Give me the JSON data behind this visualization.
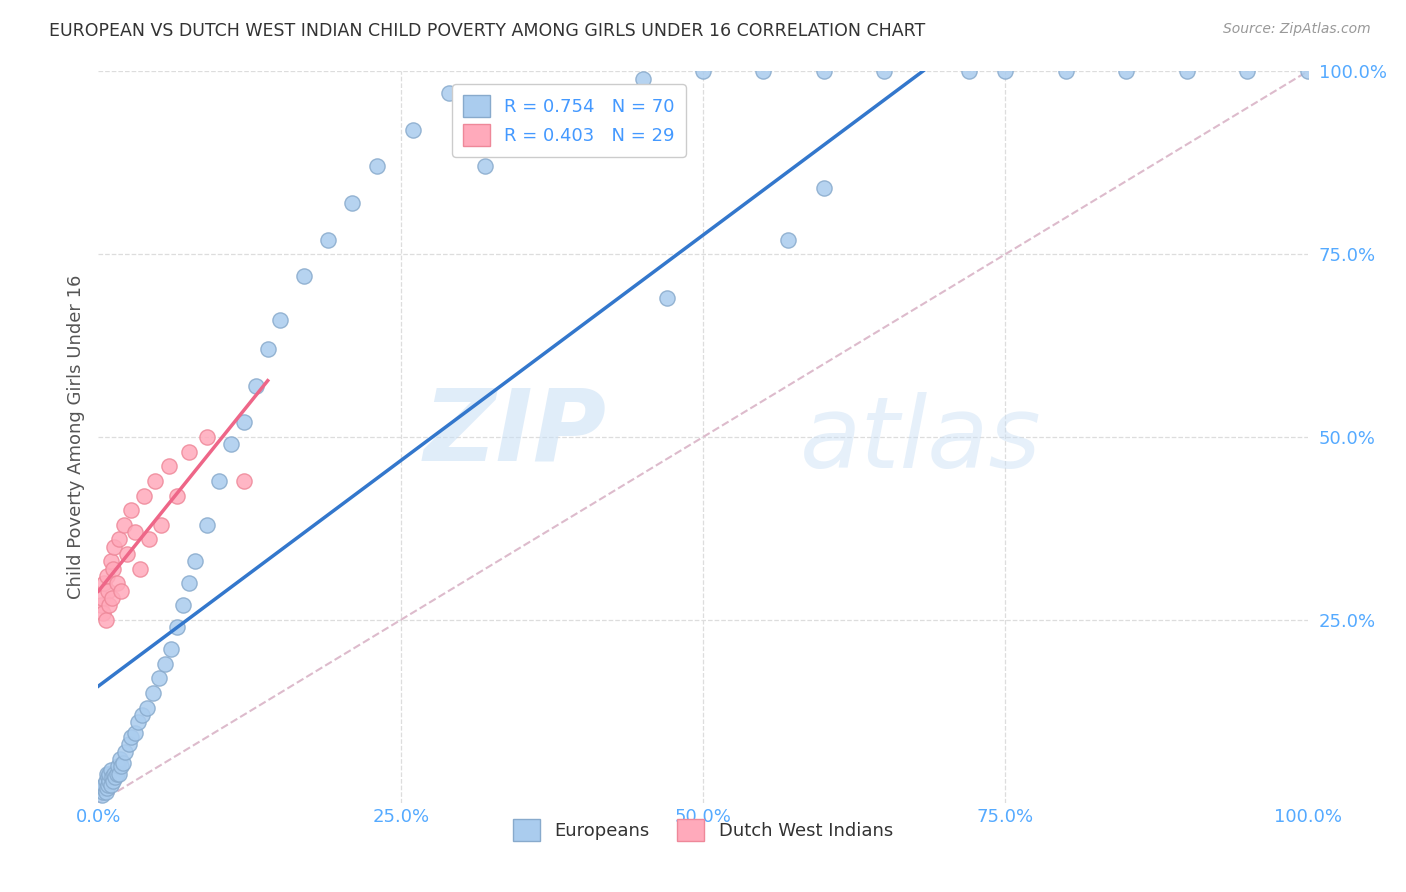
{
  "title": "EUROPEAN VS DUTCH WEST INDIAN CHILD POVERTY AMONG GIRLS UNDER 16 CORRELATION CHART",
  "source": "Source: ZipAtlas.com",
  "ylabel": "Child Poverty Among Girls Under 16",
  "watermark_zip": "ZIP",
  "watermark_atlas": "atlas",
  "blue_scatter_color": "#aaccee",
  "blue_scatter_edge": "#88aacc",
  "pink_scatter_color": "#ffaabb",
  "pink_scatter_edge": "#ee8899",
  "blue_line_color": "#3377cc",
  "pink_line_color": "#ee6688",
  "diag_color": "#dddddd",
  "grid_color": "#dddddd",
  "axis_tick_color": "#55aaff",
  "title_color": "#333333",
  "source_color": "#999999",
  "ylabel_color": "#555555",
  "legend_text_color": "#4499ff",
  "europeans_x": [
    0.003,
    0.004,
    0.005,
    0.005,
    0.006,
    0.006,
    0.007,
    0.007,
    0.008,
    0.008,
    0.009,
    0.009,
    0.01,
    0.01,
    0.011,
    0.012,
    0.013,
    0.014,
    0.015,
    0.016,
    0.017,
    0.018,
    0.019,
    0.02,
    0.022,
    0.025,
    0.027,
    0.03,
    0.033,
    0.036,
    0.04,
    0.045,
    0.05,
    0.055,
    0.06,
    0.065,
    0.07,
    0.075,
    0.08,
    0.09,
    0.1,
    0.11,
    0.12,
    0.13,
    0.14,
    0.15,
    0.17,
    0.19,
    0.21,
    0.23,
    0.26,
    0.29,
    0.32,
    0.36,
    0.4,
    0.45,
    0.5,
    0.55,
    0.6,
    0.65,
    0.72,
    0.75,
    0.8,
    0.85,
    0.9,
    0.95,
    1.0,
    0.47,
    0.6,
    0.57
  ],
  "europeans_y": [
    0.01,
    0.015,
    0.02,
    0.025,
    0.015,
    0.03,
    0.02,
    0.04,
    0.025,
    0.035,
    0.03,
    0.04,
    0.025,
    0.045,
    0.035,
    0.03,
    0.04,
    0.035,
    0.04,
    0.05,
    0.04,
    0.06,
    0.05,
    0.055,
    0.07,
    0.08,
    0.09,
    0.095,
    0.11,
    0.12,
    0.13,
    0.15,
    0.17,
    0.19,
    0.21,
    0.24,
    0.27,
    0.3,
    0.33,
    0.38,
    0.44,
    0.49,
    0.52,
    0.57,
    0.62,
    0.66,
    0.72,
    0.77,
    0.82,
    0.87,
    0.92,
    0.97,
    0.87,
    0.93,
    0.96,
    0.99,
    1.0,
    1.0,
    1.0,
    1.0,
    1.0,
    1.0,
    1.0,
    1.0,
    1.0,
    1.0,
    1.0,
    0.69,
    0.84,
    0.77
  ],
  "dutch_x": [
    0.002,
    0.003,
    0.004,
    0.005,
    0.006,
    0.007,
    0.008,
    0.009,
    0.01,
    0.011,
    0.012,
    0.013,
    0.015,
    0.017,
    0.019,
    0.021,
    0.024,
    0.027,
    0.03,
    0.034,
    0.038,
    0.042,
    0.047,
    0.052,
    0.058,
    0.065,
    0.075,
    0.09,
    0.12
  ],
  "dutch_y": [
    0.27,
    0.28,
    0.26,
    0.3,
    0.25,
    0.31,
    0.29,
    0.27,
    0.33,
    0.28,
    0.32,
    0.35,
    0.3,
    0.36,
    0.29,
    0.38,
    0.34,
    0.4,
    0.37,
    0.32,
    0.42,
    0.36,
    0.44,
    0.38,
    0.46,
    0.42,
    0.48,
    0.5,
    0.44
  ],
  "xlim": [
    0,
    1
  ],
  "ylim": [
    0,
    1
  ],
  "xticks": [
    0.0,
    0.25,
    0.5,
    0.75,
    1.0
  ],
  "yticks": [
    0.25,
    0.5,
    0.75,
    1.0
  ],
  "xticklabels": [
    "0.0%",
    "25.0%",
    "50.0%",
    "75.0%",
    "100.0%"
  ],
  "yticklabels": [
    "25.0%",
    "50.0%",
    "75.0%",
    "100.0%"
  ]
}
